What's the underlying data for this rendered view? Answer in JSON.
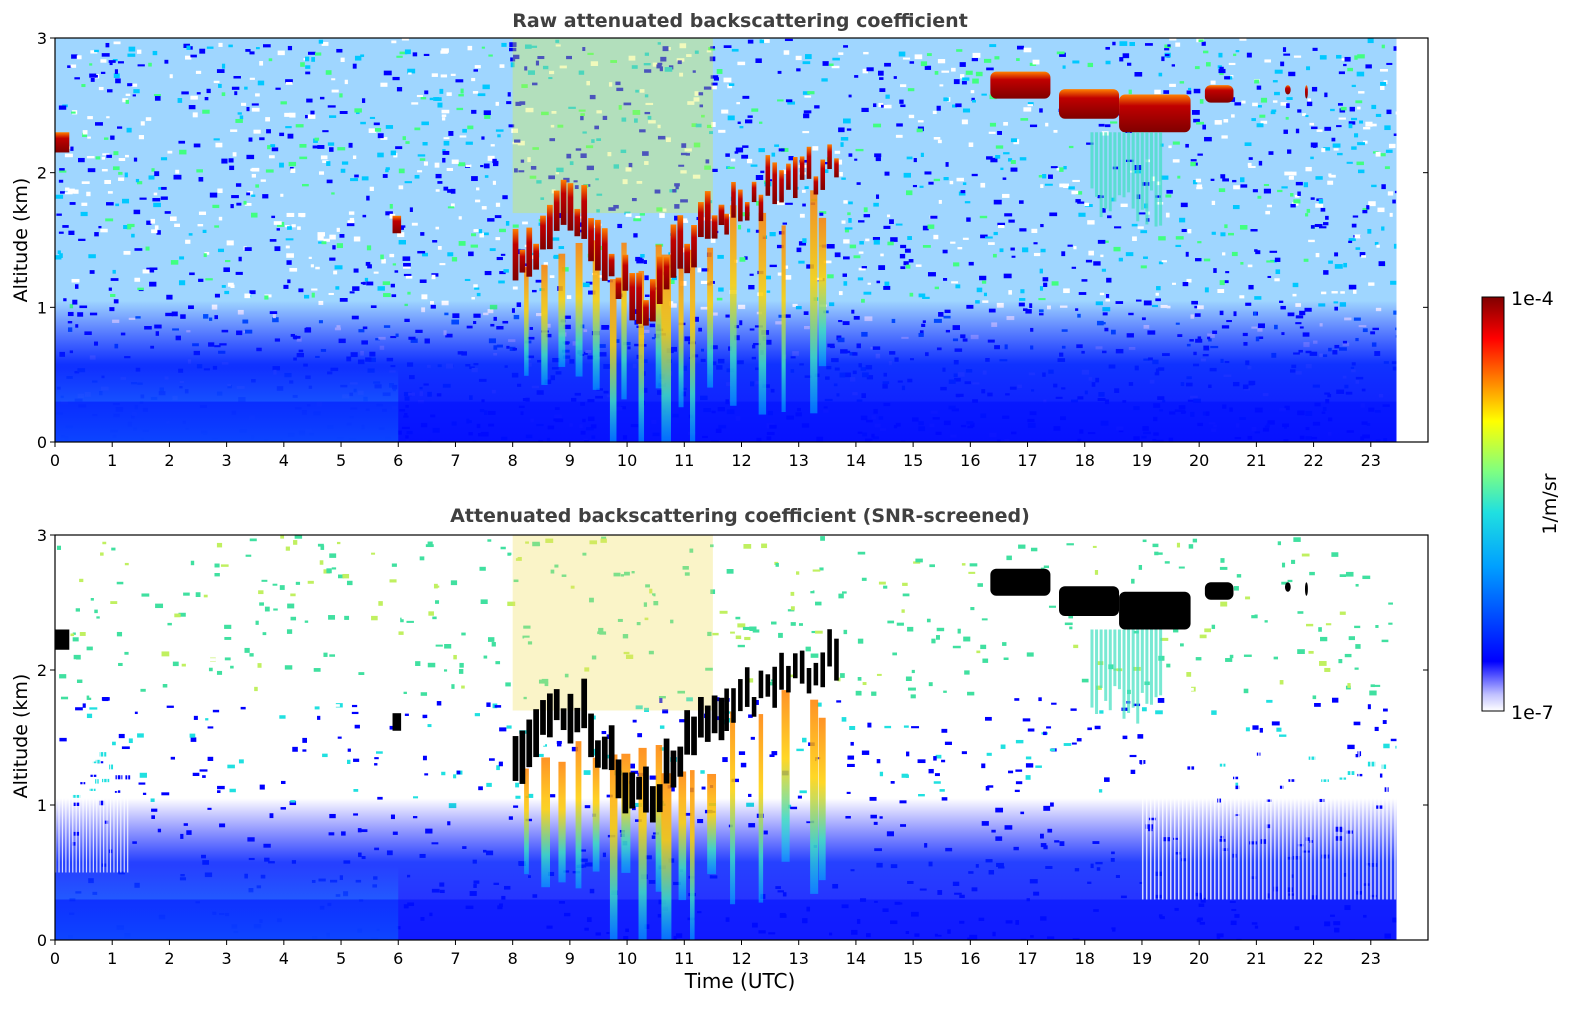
{
  "chart_data": [
    {
      "type": "heatmap",
      "title": "Raw attenuated backscattering coefficient",
      "xlabel": "",
      "ylabel": "Altitude (km)",
      "xlim": [
        0,
        24
      ],
      "ylim": [
        0,
        3
      ],
      "x_ticks": [
        "0",
        "1",
        "2",
        "3",
        "4",
        "5",
        "6",
        "7",
        "8",
        "9",
        "10",
        "11",
        "12",
        "13",
        "14",
        "15",
        "16",
        "17",
        "18",
        "19",
        "20",
        "21",
        "22",
        "23"
      ],
      "y_ticks": [
        "0",
        "1",
        "2",
        "3"
      ],
      "data_extent_hours": [
        0,
        23.45
      ],
      "features": [
        {
          "kind": "boundary-layer",
          "x_range": [
            0,
            23.45
          ],
          "top_km": 0.35,
          "description_level": "medium"
        },
        {
          "kind": "cloud-base",
          "x_range": [
            8.0,
            11.6
          ],
          "alt_km": [
            1.1,
            1.8
          ]
        },
        {
          "kind": "cloud-base",
          "x_range": [
            11.6,
            13.7
          ],
          "alt_km": [
            1.5,
            2.2
          ]
        },
        {
          "kind": "cloud",
          "x_range": [
            16.3,
            17.4
          ],
          "alt_km": [
            2.5,
            2.75
          ]
        },
        {
          "kind": "cloud",
          "x_range": [
            17.5,
            19.8
          ],
          "alt_km": [
            2.25,
            2.65
          ]
        },
        {
          "kind": "cloud",
          "x_range": [
            20.1,
            20.6
          ],
          "alt_km": [
            2.5,
            2.65
          ]
        },
        {
          "kind": "rain-streaks",
          "x_range": [
            8.0,
            11.2
          ],
          "alt_km": [
            0,
            1.6
          ]
        }
      ]
    },
    {
      "type": "heatmap",
      "title": "Attenuated backscattering coefficient (SNR-screened)",
      "xlabel": "Time (UTC)",
      "ylabel": "Altitude (km)",
      "xlim": [
        0,
        24
      ],
      "ylim": [
        0,
        3
      ],
      "x_ticks": [
        "0",
        "1",
        "2",
        "3",
        "4",
        "5",
        "6",
        "7",
        "8",
        "9",
        "10",
        "11",
        "12",
        "13",
        "14",
        "15",
        "16",
        "17",
        "18",
        "19",
        "20",
        "21",
        "22",
        "23"
      ],
      "y_ticks": [
        "0",
        "1",
        "2",
        "3"
      ],
      "data_extent_hours": [
        0,
        23.45
      ],
      "saturated_color": "#000000"
    }
  ],
  "colorbar": {
    "label": "1/m/sr",
    "max_label": "1e-4",
    "min_label": "1e-7",
    "colormap": "jet",
    "colors": [
      "#ffffff",
      "#0000ff",
      "#00a0ff",
      "#20e0e0",
      "#80ff80",
      "#ffff00",
      "#ff8000",
      "#ff0000",
      "#800000"
    ]
  }
}
